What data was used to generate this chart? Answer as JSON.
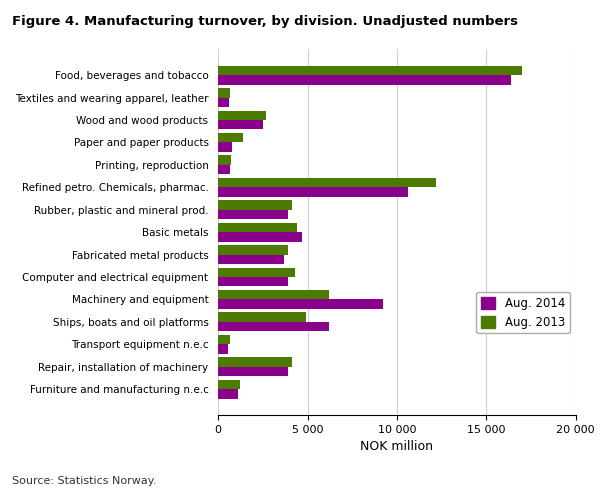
{
  "title": "Figure 4. Manufacturing turnover, by division. Unadjusted numbers",
  "categories": [
    "Food, beverages and tobacco",
    "Textiles and wearing apparel, leather",
    "Wood and wood products",
    "Paper and paper products",
    "Printing, reproduction",
    "Refined petro. Chemicals, pharmac.",
    "Rubber, plastic and mineral prod.",
    "Basic metals",
    "Fabricated metal products",
    "Computer and electrical equipment",
    "Machinery and equipment",
    "Ships, boats and oil platforms",
    "Transport equipment n.e.c",
    "Repair, installation of machinery",
    "Furniture and manufacturing n.e.c"
  ],
  "aug2014": [
    16400,
    600,
    2500,
    750,
    650,
    10600,
    3900,
    4700,
    3700,
    3900,
    9200,
    6200,
    550,
    3900,
    1100
  ],
  "aug2013": [
    17000,
    650,
    2700,
    1400,
    700,
    12200,
    4100,
    4400,
    3900,
    4300,
    6200,
    4900,
    650,
    4100,
    1200
  ],
  "color_2014": "#8B008B",
  "color_2013": "#4d7a00",
  "xlabel": "NOK million",
  "legend_2014": "Aug. 2014",
  "legend_2013": "Aug. 2013",
  "xlim": [
    0,
    20000
  ],
  "xticks": [
    0,
    5000,
    10000,
    15000,
    20000
  ],
  "xticklabels": [
    "0",
    "5 000",
    "10 000",
    "15 000",
    "20 000"
  ],
  "source": "Source: Statistics Norway.",
  "background_color": "#ffffff",
  "grid_color": "#d0d0d0"
}
